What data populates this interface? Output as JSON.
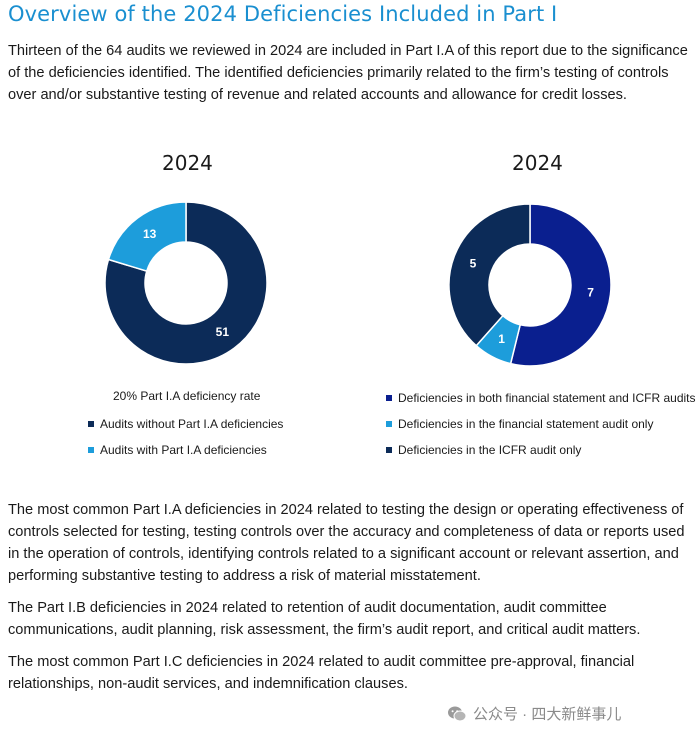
{
  "header": {
    "title": "Overview of the 2024 Deficiencies Included in Part I"
  },
  "intro": "Thirteen of the 64 audits we reviewed in 2024 are included in Part I.A of this report due to the significance of the deficiencies identified. The identified deficiencies primarily related to the firm’s testing of controls over and/or substantive testing of revenue and related accounts and allowance for credit losses.",
  "chart_data": [
    {
      "type": "pie",
      "donut": true,
      "title": "2024",
      "subtitle": "20% Part I.A deficiency rate",
      "labels": [
        "Audits without Part I.A deficiencies",
        "Audits with Part I.A deficiencies"
      ],
      "values": [
        51,
        13
      ],
      "colors": [
        "#0c2b58",
        "#1d9ddb"
      ],
      "legend": "bottom"
    },
    {
      "type": "pie",
      "donut": true,
      "title": "2024",
      "labels": [
        "Deficiencies in both financial statement and ICFR audits",
        "Deficiencies in the financial statement audit only",
        "Deficiencies in the ICFR audit only"
      ],
      "values": [
        7,
        1,
        5
      ],
      "colors": [
        "#0a1f8f",
        "#1d9ddb",
        "#0c2b58"
      ],
      "legend": "bottom"
    }
  ],
  "paragraphs": [
    "The most common Part I.A deficiencies in 2024 related to testing the design or operating effectiveness of controls selected for testing, testing controls over the accuracy and completeness of data or reports used in the operation of controls, identifying controls related to a significant account or relevant assertion, and performing substantive testing to address a risk of material misstatement.",
    "The Part I.B deficiencies in 2024 related to retention of audit documentation, audit committee communications, audit planning, risk assessment, the firm’s audit report, and critical audit matters.",
    "The most common Part I.C deficiencies in 2024 related to audit committee pre-approval, financial relationships, non-audit services, and indemnification clauses."
  ],
  "watermark": {
    "text": "公众号 · 四大新鲜事儿",
    "icon": "wechat-icon"
  }
}
